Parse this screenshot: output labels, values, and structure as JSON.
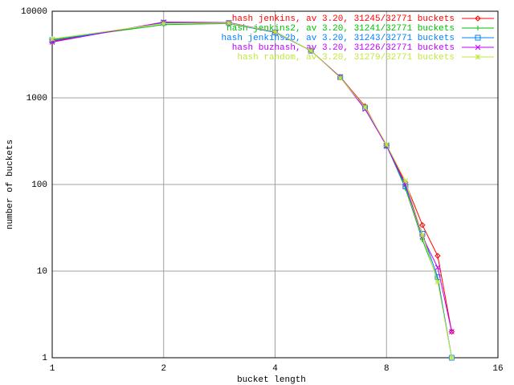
{
  "chart_data": {
    "type": "line",
    "xlabel": "bucket length",
    "ylabel": "number of buckets",
    "x": [
      1,
      2,
      3,
      4,
      5,
      6,
      7,
      8,
      9,
      10,
      11,
      12
    ],
    "series": [
      {
        "name": "hash jenkins, av 3.20, 31245/32771 buckets",
        "color": "#ff0000",
        "marker": "diamond",
        "values": [
          4500,
          7400,
          7300,
          5800,
          3500,
          1740,
          800,
          280,
          105,
          34,
          15,
          2
        ]
      },
      {
        "name": "hash jenkins2, av 3.20, 31241/32771 buckets",
        "color": "#00c000",
        "marker": "plus",
        "values": [
          4700,
          7000,
          7200,
          5700,
          3500,
          1720,
          760,
          285,
          90,
          23,
          8,
          1
        ]
      },
      {
        "name": "hash jenkins2b, av 3.20, 31243/32771 buckets",
        "color": "#0080ff",
        "marker": "square",
        "values": [
          4600,
          7300,
          7300,
          5700,
          3500,
          1730,
          770,
          280,
          95,
          27,
          8.5,
          1
        ]
      },
      {
        "name": "hash buzhash, av 3.20, 31226/32771 buckets",
        "color": "#c000ff",
        "marker": "cross",
        "values": [
          4400,
          7500,
          7400,
          5800,
          3500,
          1730,
          740,
          280,
          100,
          25,
          11,
          2
        ]
      },
      {
        "name": "hash random, av 3.20, 31279/32771 buckets",
        "color": "#c0e840",
        "marker": "star",
        "values": [
          4800,
          7200,
          7300,
          5800,
          3500,
          1700,
          780,
          290,
          110,
          26,
          7.5,
          1
        ]
      }
    ],
    "xlim": [
      1,
      16
    ],
    "xticks": [
      1,
      2,
      4,
      8,
      16
    ],
    "xlog": true,
    "ylim": [
      1,
      10000
    ],
    "yticks": [
      1,
      10,
      100,
      1000,
      10000
    ],
    "ylog": true,
    "grid": true,
    "legend": "top-right"
  }
}
